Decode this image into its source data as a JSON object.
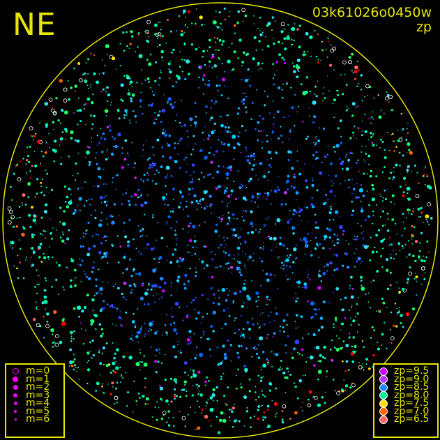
{
  "header": {
    "direction": "NE",
    "frame_id": "03k61026o0450w",
    "color_key": "zp"
  },
  "sky_border_color": "#e6e600",
  "magnitude_legend": [
    {
      "label": "m=0",
      "marker": "ring"
    },
    {
      "label": "m=1",
      "marker": "dot"
    },
    {
      "label": "m=2",
      "marker": "dot"
    },
    {
      "label": "m=3",
      "marker": "dot"
    },
    {
      "label": "m=4",
      "marker": "dot"
    },
    {
      "label": "m=5",
      "marker": "dot"
    },
    {
      "label": "m=6",
      "marker": "dot"
    }
  ],
  "magnitude_color": "#ff00ff",
  "zp_legend": [
    {
      "label": "zp=9.5",
      "color": "#cc00ff"
    },
    {
      "label": "zp=9.0",
      "color": "#bb33ee"
    },
    {
      "label": "zp=8.5",
      "color": "#2288ff"
    },
    {
      "label": "zp=8.0",
      "color": "#00ee99"
    },
    {
      "label": "zp=7.5",
      "color": "#ffdd00"
    },
    {
      "label": "zp=7.0",
      "color": "#ff6600"
    },
    {
      "label": "zp=6.5",
      "color": "#ff6666"
    }
  ]
}
